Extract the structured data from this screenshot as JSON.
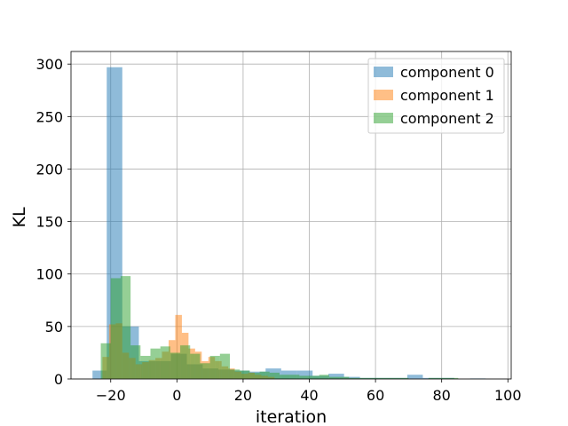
{
  "chart_data": {
    "type": "bar",
    "title": "",
    "xlabel": "iteration",
    "ylabel": "KL",
    "xlim": [
      -32,
      101
    ],
    "ylim": [
      0,
      312
    ],
    "xticks": [
      -20,
      0,
      20,
      40,
      60,
      80,
      100
    ],
    "yticks": [
      0,
      50,
      100,
      150,
      200,
      250,
      300
    ],
    "grid": true,
    "legend_position": "top-right",
    "series": [
      {
        "name": "component 0",
        "color": "#1f77b4",
        "bins": [
          {
            "x0": -25.5,
            "x1": -21.2,
            "y": 8
          },
          {
            "x0": -21.2,
            "x1": -16.5,
            "y": 297
          },
          {
            "x0": -16.5,
            "x1": -11.5,
            "y": 50
          },
          {
            "x0": -11.5,
            "x1": -6.5,
            "y": 17
          },
          {
            "x0": -6.5,
            "x1": -1.8,
            "y": 17
          },
          {
            "x0": -1.8,
            "x1": 3.0,
            "y": 24
          },
          {
            "x0": 3.0,
            "x1": 7.8,
            "y": 14
          },
          {
            "x0": 7.8,
            "x1": 12.5,
            "y": 10
          },
          {
            "x0": 12.5,
            "x1": 17.3,
            "y": 9
          },
          {
            "x0": 17.3,
            "x1": 22.0,
            "y": 8
          },
          {
            "x0": 22.0,
            "x1": 26.8,
            "y": 7
          },
          {
            "x0": 26.8,
            "x1": 31.5,
            "y": 10
          },
          {
            "x0": 31.5,
            "x1": 36.3,
            "y": 8
          },
          {
            "x0": 36.3,
            "x1": 41.0,
            "y": 8
          },
          {
            "x0": 41.0,
            "x1": 45.8,
            "y": 3
          },
          {
            "x0": 45.8,
            "x1": 50.5,
            "y": 5
          },
          {
            "x0": 50.5,
            "x1": 55.3,
            "y": 2
          },
          {
            "x0": 55.3,
            "x1": 60.0,
            "y": 1
          },
          {
            "x0": 60.0,
            "x1": 64.8,
            "y": 1
          },
          {
            "x0": 64.8,
            "x1": 69.6,
            "y": 1
          },
          {
            "x0": 69.6,
            "x1": 74.3,
            "y": 4
          },
          {
            "x0": 74.3,
            "x1": 79.1,
            "y": 1
          },
          {
            "x0": 79.1,
            "x1": 83.8,
            "y": 1
          },
          {
            "x0": 88.6,
            "x1": 93.3,
            "y": 0.5
          }
        ]
      },
      {
        "name": "component 1",
        "color": "#ff7f0e",
        "bins": [
          {
            "x0": -22.5,
            "x1": -20.5,
            "y": 21
          },
          {
            "x0": -20.5,
            "x1": -18.5,
            "y": 52
          },
          {
            "x0": -18.5,
            "x1": -16.5,
            "y": 53
          },
          {
            "x0": -16.5,
            "x1": -14.5,
            "y": 25
          },
          {
            "x0": -14.5,
            "x1": -12.5,
            "y": 20
          },
          {
            "x0": -12.5,
            "x1": -10.5,
            "y": 14
          },
          {
            "x0": -10.5,
            "x1": -8.5,
            "y": 16
          },
          {
            "x0": -8.5,
            "x1": -6.5,
            "y": 18
          },
          {
            "x0": -6.5,
            "x1": -4.5,
            "y": 20
          },
          {
            "x0": -4.5,
            "x1": -2.5,
            "y": 26
          },
          {
            "x0": -2.5,
            "x1": -0.5,
            "y": 37
          },
          {
            "x0": -0.5,
            "x1": 1.5,
            "y": 61
          },
          {
            "x0": 1.5,
            "x1": 3.5,
            "y": 44
          },
          {
            "x0": 3.5,
            "x1": 5.5,
            "y": 29
          },
          {
            "x0": 5.5,
            "x1": 7.5,
            "y": 26
          },
          {
            "x0": 7.5,
            "x1": 9.5,
            "y": 17
          },
          {
            "x0": 9.5,
            "x1": 11.5,
            "y": 21
          },
          {
            "x0": 11.5,
            "x1": 13.5,
            "y": 17
          },
          {
            "x0": 13.5,
            "x1": 15.5,
            "y": 12
          },
          {
            "x0": 15.5,
            "x1": 17.5,
            "y": 10
          },
          {
            "x0": 17.5,
            "x1": 19.5,
            "y": 7
          },
          {
            "x0": 19.5,
            "x1": 21.5,
            "y": 5
          },
          {
            "x0": 21.5,
            "x1": 23.5,
            "y": 6
          },
          {
            "x0": 23.5,
            "x1": 25.5,
            "y": 4
          },
          {
            "x0": 25.5,
            "x1": 27.5,
            "y": 3
          },
          {
            "x0": 27.5,
            "x1": 29.5,
            "y": 2
          }
        ]
      },
      {
        "name": "component 2",
        "color": "#2ca02c",
        "bins": [
          {
            "x0": -23.0,
            "x1": -20.0,
            "y": 34
          },
          {
            "x0": -20.0,
            "x1": -17.0,
            "y": 96
          },
          {
            "x0": -17.0,
            "x1": -14.0,
            "y": 98
          },
          {
            "x0": -14.0,
            "x1": -11.0,
            "y": 32
          },
          {
            "x0": -11.0,
            "x1": -8.0,
            "y": 22
          },
          {
            "x0": -8.0,
            "x1": -5.0,
            "y": 29
          },
          {
            "x0": -5.0,
            "x1": -2.0,
            "y": 31
          },
          {
            "x0": -2.0,
            "x1": 1.0,
            "y": 25
          },
          {
            "x0": 1.0,
            "x1": 4.0,
            "y": 32
          },
          {
            "x0": 4.0,
            "x1": 7.0,
            "y": 24
          },
          {
            "x0": 7.0,
            "x1": 10.0,
            "y": 15
          },
          {
            "x0": 10.0,
            "x1": 13.0,
            "y": 22
          },
          {
            "x0": 13.0,
            "x1": 16.0,
            "y": 24
          },
          {
            "x0": 16.0,
            "x1": 19.0,
            "y": 9
          },
          {
            "x0": 19.0,
            "x1": 22.0,
            "y": 8
          },
          {
            "x0": 22.0,
            "x1": 25.0,
            "y": 6
          },
          {
            "x0": 25.0,
            "x1": 28.0,
            "y": 7
          },
          {
            "x0": 28.0,
            "x1": 31.0,
            "y": 6
          },
          {
            "x0": 31.0,
            "x1": 34.0,
            "y": 4
          },
          {
            "x0": 34.0,
            "x1": 37.0,
            "y": 4
          },
          {
            "x0": 37.0,
            "x1": 40.0,
            "y": 3
          },
          {
            "x0": 40.0,
            "x1": 43.0,
            "y": 3
          },
          {
            "x0": 43.0,
            "x1": 46.0,
            "y": 4
          },
          {
            "x0": 46.0,
            "x1": 49.0,
            "y": 2
          },
          {
            "x0": 49.0,
            "x1": 52.0,
            "y": 2
          },
          {
            "x0": 52.0,
            "x1": 55.0,
            "y": 1
          },
          {
            "x0": 55.0,
            "x1": 58.0,
            "y": 1
          },
          {
            "x0": 58.0,
            "x1": 61.0,
            "y": 1
          },
          {
            "x0": 61.0,
            "x1": 64.0,
            "y": 1
          },
          {
            "x0": 64.0,
            "x1": 67.0,
            "y": 1
          },
          {
            "x0": 67.0,
            "x1": 70.0,
            "y": 1
          },
          {
            "x0": 76.0,
            "x1": 79.0,
            "y": 1
          },
          {
            "x0": 79.0,
            "x1": 82.0,
            "y": 1
          },
          {
            "x0": 82.0,
            "x1": 85.0,
            "y": 1
          }
        ]
      }
    ]
  }
}
